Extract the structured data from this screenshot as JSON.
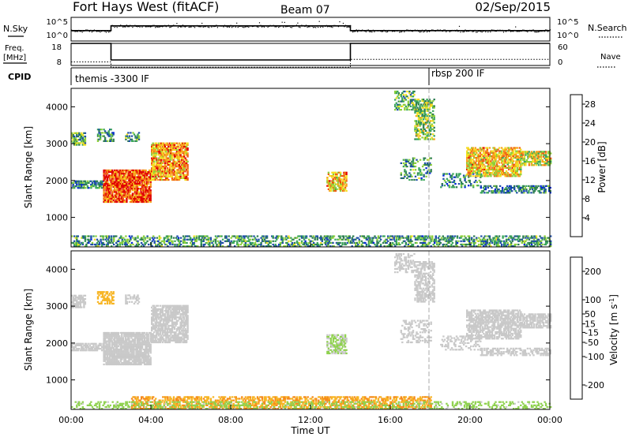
{
  "header": {
    "station": "Fort Hays West (fitACF)",
    "beam": "Beam 07",
    "date": "02/Sep/2015"
  },
  "noise_panel": {
    "left_label": "N.Sky",
    "right_label": "N.Search",
    "left_ticks": [
      "10^5",
      "10^0"
    ],
    "right_ticks": [
      "10^5",
      "10^0"
    ]
  },
  "freq_panel": {
    "left_label_line1": "Freq.",
    "left_label_line2": "[MHz]",
    "right_label": "Nave",
    "left_ticks": [
      "18",
      "8"
    ],
    "right_ticks": [
      "60",
      "0"
    ]
  },
  "cpid_panel": {
    "label": "CPID",
    "programs": [
      {
        "name": "themis -3300 IF",
        "start_hour": 0,
        "end_hour": 18.05
      },
      {
        "name": "rbsp 200 IF",
        "start_hour": 18.05,
        "end_hour": 24
      }
    ]
  },
  "colors": {
    "power": [
      "#0026d9",
      "#1f4fa8",
      "#2e7d52",
      "#3aa65a",
      "#8ccf3a",
      "#f4e020",
      "#f7a21b",
      "#f06014",
      "#e00000"
    ],
    "velocity": [
      "#e00000",
      "#f0421a",
      "#f58a1c",
      "#f7b523",
      "#c9c9c9",
      "#8fd14f",
      "#3aa040",
      "#1f4fa8",
      "#1a2fd0"
    ],
    "frame": "#000000",
    "gate_line": "#aaaaaa"
  },
  "chart_data": [
    {
      "type": "line",
      "title": "N.Sky / N.Search",
      "x": [
        0,
        2,
        2,
        14,
        14,
        24
      ],
      "series": [
        {
          "name": "N.Sky",
          "values": [
            2.2,
            2.2,
            3.2,
            3.2,
            2.2,
            2.2
          ]
        }
      ],
      "xlim": [
        0,
        24
      ],
      "ylim": [
        0,
        5
      ],
      "scale": "log"
    },
    {
      "type": "line",
      "title": "Freq / Nave",
      "x": [
        0,
        2,
        2,
        14,
        14,
        24
      ],
      "series": [
        {
          "name": "Freq.",
          "values": [
            18,
            18,
            10.5,
            10.5,
            18,
            18
          ]
        },
        {
          "name": "Nave",
          "values": [
            16,
            16,
            12,
            12,
            18,
            18
          ]
        }
      ],
      "xlim": [
        0,
        24
      ],
      "ylim": [
        8,
        18
      ]
    },
    {
      "type": "heatmap",
      "quantity": "Power",
      "ylabel": "Slant Range [km]",
      "colorbar_label": "Power [dB]",
      "colorbar_ticks": [
        4,
        8,
        12,
        16,
        20,
        24,
        28
      ],
      "clim": [
        0,
        30
      ],
      "xlim": [
        0,
        24
      ],
      "ylim": [
        200,
        4500
      ],
      "yticks": [
        1000,
        2000,
        3000,
        4000
      ],
      "features": [
        {
          "t0": 0.0,
          "t1": 0.7,
          "r0": 2950,
          "r1": 3300,
          "value": 12,
          "density": 0.7
        },
        {
          "t0": 1.3,
          "t1": 2.1,
          "r0": 3050,
          "r1": 3400,
          "value": 10,
          "density": 0.5
        },
        {
          "t0": 2.7,
          "t1": 3.4,
          "r0": 3050,
          "r1": 3300,
          "value": 10,
          "density": 0.5
        },
        {
          "t0": 0.0,
          "t1": 1.6,
          "r0": 1780,
          "r1": 2000,
          "value": 9,
          "density": 0.7
        },
        {
          "t0": 1.6,
          "t1": 4.0,
          "r0": 1400,
          "r1": 2300,
          "value": 26,
          "density": 0.85
        },
        {
          "t0": 4.0,
          "t1": 5.8,
          "r0": 2000,
          "r1": 3000,
          "value": 22,
          "density": 0.75
        },
        {
          "t0": 12.8,
          "t1": 13.8,
          "r0": 1700,
          "r1": 2200,
          "value": 20,
          "density": 0.65
        },
        {
          "t0": 16.2,
          "t1": 17.2,
          "r0": 3900,
          "r1": 4400,
          "value": 12,
          "density": 0.45
        },
        {
          "t0": 17.2,
          "t1": 18.2,
          "r0": 3100,
          "r1": 4200,
          "value": 14,
          "density": 0.55
        },
        {
          "t0": 16.5,
          "t1": 18.0,
          "r0": 2000,
          "r1": 2600,
          "value": 10,
          "density": 0.3
        },
        {
          "t0": 18.5,
          "t1": 20.5,
          "r0": 1800,
          "r1": 2200,
          "value": 8,
          "density": 0.3
        },
        {
          "t0": 19.8,
          "t1": 22.5,
          "r0": 2100,
          "r1": 2900,
          "value": 20,
          "density": 0.7
        },
        {
          "t0": 22.5,
          "t1": 24.0,
          "r0": 2400,
          "r1": 2800,
          "value": 18,
          "density": 0.7
        },
        {
          "t0": 20.5,
          "t1": 24.0,
          "r0": 1650,
          "r1": 1850,
          "value": 8,
          "density": 0.5
        },
        {
          "t0": 0.0,
          "t1": 24.0,
          "r0": 200,
          "r1": 500,
          "value": 10,
          "density": 0.45
        }
      ]
    },
    {
      "type": "heatmap",
      "quantity": "Velocity",
      "ylabel": "Slant Range [km]",
      "xlabel": "Time UT",
      "colorbar_label": "Velocity [m s^-1]",
      "colorbar_ticks": [
        -200,
        -100,
        -50,
        -15,
        15,
        50,
        100,
        200
      ],
      "clim": [
        -250,
        250
      ],
      "xlim": [
        0,
        24
      ],
      "ylim": [
        200,
        4500
      ],
      "yticks": [
        1000,
        2000,
        3000,
        4000
      ],
      "xticks": [
        "00:00",
        "04:00",
        "08:00",
        "12:00",
        "16:00",
        "20:00",
        "00:00"
      ],
      "features": [
        {
          "t0": 0.0,
          "t1": 0.7,
          "r0": 2950,
          "r1": 3300,
          "value": 0,
          "density": 0.7
        },
        {
          "t0": 1.3,
          "t1": 2.1,
          "r0": 3050,
          "r1": 3400,
          "value": -60,
          "density": 0.5
        },
        {
          "t0": 2.7,
          "t1": 3.4,
          "r0": 3050,
          "r1": 3300,
          "value": 0,
          "density": 0.5
        },
        {
          "t0": 0.0,
          "t1": 1.6,
          "r0": 1780,
          "r1": 2000,
          "value": 0,
          "density": 0.7
        },
        {
          "t0": 1.6,
          "t1": 4.0,
          "r0": 1400,
          "r1": 2300,
          "value": 0,
          "density": 0.85
        },
        {
          "t0": 4.0,
          "t1": 5.8,
          "r0": 2000,
          "r1": 3000,
          "value": 0,
          "density": 0.75
        },
        {
          "t0": 12.8,
          "t1": 13.8,
          "r0": 1700,
          "r1": 2200,
          "value": 30,
          "density": 0.65
        },
        {
          "t0": 16.2,
          "t1": 17.2,
          "r0": 3900,
          "r1": 4400,
          "value": 0,
          "density": 0.45
        },
        {
          "t0": 17.2,
          "t1": 18.2,
          "r0": 3100,
          "r1": 4200,
          "value": 0,
          "density": 0.55
        },
        {
          "t0": 16.5,
          "t1": 18.0,
          "r0": 2000,
          "r1": 2600,
          "value": 0,
          "density": 0.3
        },
        {
          "t0": 18.5,
          "t1": 20.5,
          "r0": 1800,
          "r1": 2200,
          "value": 0,
          "density": 0.3
        },
        {
          "t0": 19.8,
          "t1": 22.5,
          "r0": 2100,
          "r1": 2900,
          "value": 0,
          "density": 0.7
        },
        {
          "t0": 22.5,
          "t1": 24.0,
          "r0": 2400,
          "r1": 2800,
          "value": 0,
          "density": 0.7
        },
        {
          "t0": 20.5,
          "t1": 24.0,
          "r0": 1650,
          "r1": 1850,
          "value": 0,
          "density": 0.5
        },
        {
          "t0": 3.0,
          "t1": 18.0,
          "r0": 200,
          "r1": 550,
          "value": -80,
          "density": 0.55
        },
        {
          "t0": 0.0,
          "t1": 24.0,
          "r0": 200,
          "r1": 400,
          "value": 40,
          "density": 0.3
        }
      ]
    }
  ]
}
